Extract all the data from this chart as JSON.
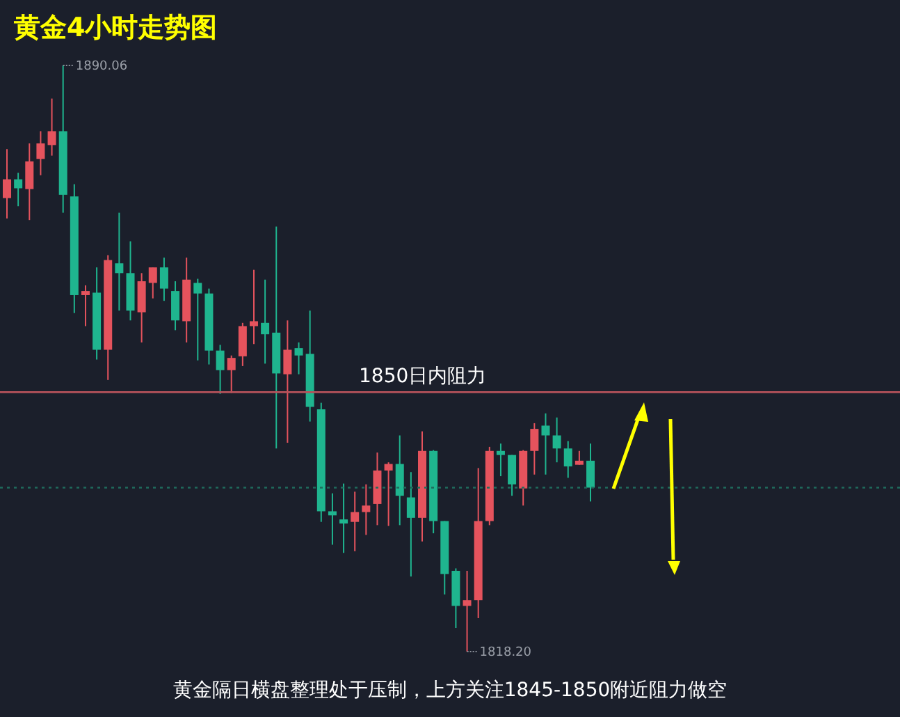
{
  "chart_data": {
    "type": "candlestick",
    "title": "黄金4小时走势图",
    "categories": [
      null,
      null,
      null,
      null,
      null,
      null,
      null,
      null,
      null,
      null,
      null,
      null,
      null,
      null,
      null,
      null,
      null,
      null,
      null,
      null,
      null,
      null,
      null,
      null,
      null,
      null,
      null,
      null,
      null,
      null,
      null,
      null,
      null,
      null,
      null,
      null,
      null,
      null,
      null,
      null,
      null,
      null,
      null,
      null,
      null,
      null,
      null,
      null,
      null,
      null,
      null,
      null,
      null
    ],
    "ohlc": [
      [
        1873.8,
        1879.8,
        1871.3,
        1876.1
      ],
      [
        1876.1,
        1876.9,
        1872.8,
        1875.0
      ],
      [
        1874.9,
        1880.5,
        1871.1,
        1878.3
      ],
      [
        1878.6,
        1882.0,
        1876.6,
        1880.5
      ],
      [
        1880.3,
        1886.0,
        1879.0,
        1882.0
      ],
      [
        1882.0,
        1890.06,
        1872.0,
        1874.2
      ],
      [
        1874.0,
        1875.5,
        1859.7,
        1861.9
      ],
      [
        1861.9,
        1863.1,
        1858.1,
        1862.4
      ],
      [
        1862.2,
        1865.3,
        1854.0,
        1855.2
      ],
      [
        1855.2,
        1866.8,
        1851.5,
        1866.2
      ],
      [
        1865.8,
        1872.0,
        1860.0,
        1864.6
      ],
      [
        1864.6,
        1868.5,
        1858.8,
        1860.0
      ],
      [
        1859.8,
        1864.6,
        1856.1,
        1863.6
      ],
      [
        1863.4,
        1865.3,
        1861.5,
        1865.3
      ],
      [
        1865.3,
        1866.5,
        1861.2,
        1862.7
      ],
      [
        1862.4,
        1863.6,
        1857.6,
        1858.8
      ],
      [
        1858.7,
        1866.5,
        1856.1,
        1863.8
      ],
      [
        1863.4,
        1863.9,
        1853.9,
        1862.1
      ],
      [
        1862.1,
        1862.7,
        1853.4,
        1855.1
      ],
      [
        1855.1,
        1855.8,
        1849.8,
        1852.7
      ],
      [
        1852.7,
        1854.5,
        1849.9,
        1854.2
      ],
      [
        1854.4,
        1858.5,
        1853.2,
        1858.1
      ],
      [
        1858.1,
        1865.0,
        1855.9,
        1858.7
      ],
      [
        1858.5,
        1863.8,
        1853.5,
        1857.1
      ],
      [
        1857.3,
        1870.3,
        1843.1,
        1852.3
      ],
      [
        1852.2,
        1858.8,
        1843.8,
        1855.2
      ],
      [
        1855.4,
        1856.1,
        1852.2,
        1854.5
      ],
      [
        1854.7,
        1860.0,
        1846.4,
        1848.2
      ],
      [
        1847.9,
        1848.7,
        1834.1,
        1835.4
      ],
      [
        1835.4,
        1837.6,
        1831.3,
        1834.9
      ],
      [
        1834.4,
        1838.8,
        1830.3,
        1833.9
      ],
      [
        1834.1,
        1837.8,
        1830.5,
        1835.3
      ],
      [
        1835.3,
        1838.7,
        1832.5,
        1836.1
      ],
      [
        1836.3,
        1842.6,
        1833.7,
        1840.4
      ],
      [
        1840.4,
        1841.4,
        1833.6,
        1841.2
      ],
      [
        1841.2,
        1844.7,
        1833.7,
        1837.3
      ],
      [
        1837.1,
        1840.2,
        1827.4,
        1834.6
      ],
      [
        1834.6,
        1845.2,
        1831.7,
        1842.8
      ],
      [
        1842.8,
        1842.9,
        1832.7,
        1834.2
      ],
      [
        1834.2,
        1834.2,
        1825.2,
        1827.7
      ],
      [
        1828.1,
        1828.4,
        1821.1,
        1823.8
      ],
      [
        1823.8,
        1828.1,
        1818.2,
        1824.5
      ],
      [
        1824.5,
        1840.7,
        1822.3,
        1834.2
      ],
      [
        1834.2,
        1843.3,
        1833.7,
        1842.8
      ],
      [
        1842.8,
        1843.7,
        1839.7,
        1842.3
      ],
      [
        1842.3,
        1842.3,
        1837.3,
        1838.7
      ],
      [
        1838.2,
        1842.9,
        1836.1,
        1842.8
      ],
      [
        1842.8,
        1846.2,
        1839.9,
        1845.5
      ],
      [
        1845.9,
        1847.4,
        1839.9,
        1844.7
      ],
      [
        1844.7,
        1846.9,
        1841.4,
        1843.1
      ],
      [
        1843.1,
        1844.0,
        1839.5,
        1840.9
      ],
      [
        1841.1,
        1842.8,
        1841.1,
        1841.6
      ],
      [
        1841.6,
        1843.7,
        1836.6,
        1838.3
      ]
    ],
    "colors": [
      "#e5535d",
      "#1fb58f",
      "#e5535d",
      "#e5535d",
      "#e5535d",
      "#1fb58f",
      "#1fb58f",
      "#e5535d",
      "#1fb58f",
      "#e5535d",
      "#1fb58f",
      "#1fb58f",
      "#e5535d",
      "#e5535d",
      "#1fb58f",
      "#1fb58f",
      "#e5535d",
      "#1fb58f",
      "#1fb58f",
      "#1fb58f",
      "#e5535d",
      "#e5535d",
      "#e5535d",
      "#1fb58f",
      "#1fb58f",
      "#e5535d",
      "#1fb58f",
      "#1fb58f",
      "#1fb58f",
      "#1fb58f",
      "#1fb58f",
      "#e5535d",
      "#e5535d",
      "#e5535d",
      "#e5535d",
      "#1fb58f",
      "#1fb58f",
      "#e5535d",
      "#1fb58f",
      "#1fb58f",
      "#1fb58f",
      "#e5535d",
      "#e5535d",
      "#e5535d",
      "#1fb58f",
      "#1fb58f",
      "#e5535d",
      "#e5535d",
      "#1fb58f",
      "#1fb58f",
      "#1fb58f",
      "#e5535d",
      "#1fb58f"
    ],
    "ref_lines": [
      {
        "axis": "y",
        "value": 1850,
        "label": "1850日内阻力",
        "color": "#b5525a",
        "line_style": "solid"
      },
      {
        "axis": "y",
        "value": 1838.3,
        "label": null,
        "color": "#1f6b5c",
        "line_style": "dotted"
      }
    ],
    "annotations": [
      "1890.06",
      "1818.20",
      "黄金隔日横盘整理处于压制，上方关注1845-1850附近阻力做空"
    ],
    "tick_labels": false
  }
}
